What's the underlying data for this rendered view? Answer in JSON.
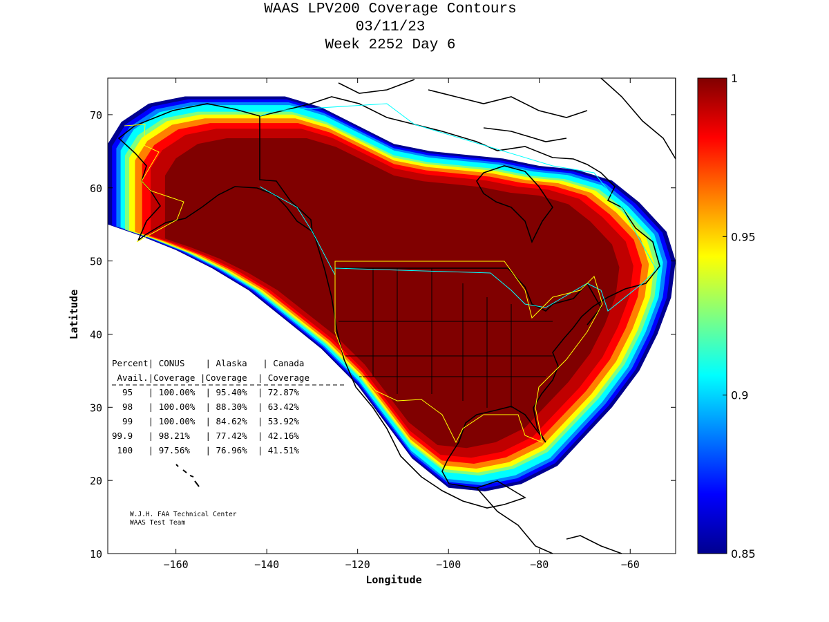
{
  "chart_data": {
    "type": "heatmap",
    "title": [
      "WAAS LPV200 Coverage Contours",
      "03/11/23",
      "Week 2252 Day 6"
    ],
    "xlabel": "Longitude",
    "ylabel": "Latitude",
    "xlim": [
      -175,
      -50
    ],
    "ylim": [
      10,
      75
    ],
    "xticks": [
      -160,
      -140,
      -120,
      -100,
      -80,
      -60
    ],
    "yticks": [
      10,
      20,
      30,
      40,
      50,
      60,
      70
    ],
    "colorbar": {
      "range": [
        0.85,
        1
      ],
      "ticks": [
        "1",
        "0.95",
        "0.9",
        "0.85"
      ],
      "colormap": "jet",
      "colors": [
        "#00008f",
        "#0000ff",
        "#0080ff",
        "#00ffff",
        "#80ff80",
        "#ffff00",
        "#ff8000",
        "#ff0000",
        "#800000"
      ]
    },
    "coverage_table": {
      "header_line1": "Percent| CONUS    | Alaska   | Canada",
      "header_line2": " Avail.|Coverage |Coverage  | Coverage",
      "rows": [
        "  95   | 100.00%  | 95.40%  | 72.87%",
        "  98   | 100.00%  | 88.30%  | 63.42%",
        "  99   | 100.00%  | 84.62%  | 53.92%",
        "99.9   | 98.21%   | 77.42%  | 42.16%",
        " 100   | 97.56%   | 76.96%  | 41.51%"
      ],
      "columns": [
        "Percent Avail.",
        "CONUS Coverage",
        "Alaska Coverage",
        "Canada Coverage"
      ],
      "data": [
        [
          "95",
          "100.00%",
          "95.40%",
          "72.87%"
        ],
        [
          "98",
          "100.00%",
          "88.30%",
          "63.42%"
        ],
        [
          "99",
          "100.00%",
          "84.62%",
          "53.92%"
        ],
        [
          "99.9",
          "98.21%",
          "77.42%",
          "42.16%"
        ],
        [
          "100",
          "97.56%",
          "76.96%",
          "41.51%"
        ]
      ]
    },
    "credits": [
      "W.J.H. FAA Technical Center",
      "WAAS Test Team"
    ]
  }
}
